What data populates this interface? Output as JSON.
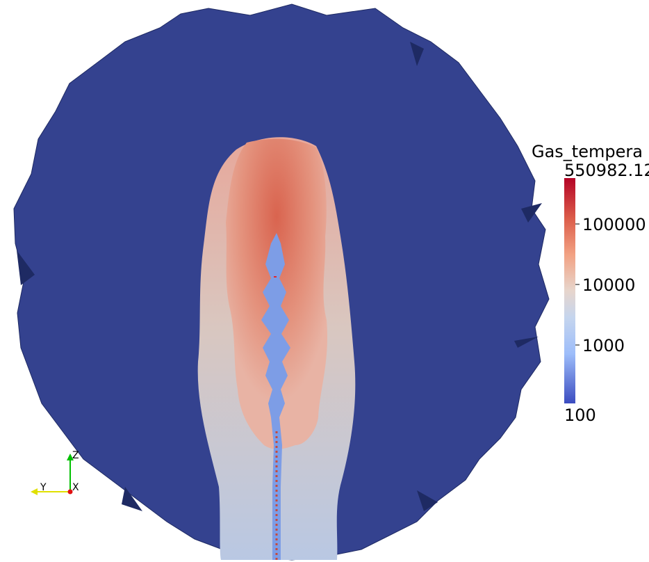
{
  "scalar_bar": {
    "title": "Gas_tempera",
    "max_label": "550982.12",
    "min_label": "100",
    "ticks": [
      "100000",
      "10000",
      "1000"
    ]
  },
  "orientation_axes": {
    "z_label": "Z",
    "y_label": "Y",
    "x_label": "X"
  },
  "colors": {
    "background": "#ffffff",
    "domain_blue": "#34428f",
    "hot_red": "#b40426",
    "cool_blue": "#3b4cc0"
  }
}
